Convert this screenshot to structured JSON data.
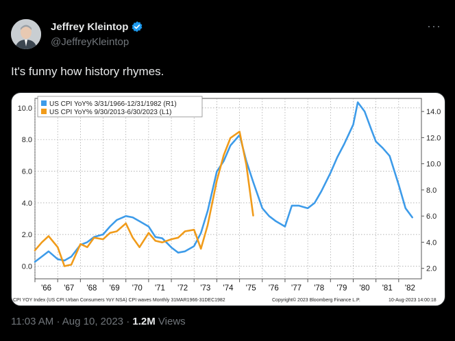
{
  "tweet": {
    "author_name": "Jeffrey Kleintop",
    "author_handle": "@JeffreyKleintop",
    "text": "It's funny how history rhymes.",
    "time": "11:03 AM",
    "date": "Aug 10, 2023",
    "views_count": "1.2M",
    "views_label": "Views",
    "more_icon": "more-icon",
    "verified_icon": "verified-badge-icon",
    "verified_color": "#1d9bf0"
  },
  "chart_data": {
    "type": "line",
    "title": "",
    "legend": {
      "placement": "top-left",
      "entries": [
        "US CPI YoY% 3/31/1966-12/31/1982  (R1)",
        "US CPI YoY% 9/30/2013-6/30/2023  (L1)"
      ]
    },
    "x_tick_labels": [
      "'66",
      "'67",
      "'68",
      "'69",
      "'70",
      "'71",
      "'72",
      "'73",
      "'74",
      "'75",
      "'76",
      "'77",
      "'78",
      "'79",
      "'80",
      "'81",
      "'82"
    ],
    "left_axis": {
      "ylim": [
        -0.8,
        10.6
      ],
      "ticks": [
        "0.0",
        "2.0",
        "4.0",
        "6.0",
        "8.0",
        "10.0"
      ]
    },
    "right_axis": {
      "ylim": [
        1.2,
        15.0
      ],
      "ticks": [
        "2.0",
        "4.0",
        "6.0",
        "8.0",
        "10.0",
        "12.0",
        "14.0"
      ]
    },
    "grid": true,
    "footer_left": "CPI YOY Index (US CPI Urban Consumers YoY NSA) CPI waves  Monthly 31MAR1966-31DEC1982",
    "footer_center": "Copyright© 2023 Bloomberg Finance L.P.",
    "footer_right": "10-Aug-2023 14:00:18",
    "series": [
      {
        "name": "US CPI YoY% 3/31/1966-12/31/1982  (R1)",
        "axis": "right",
        "color": "#3d9be9",
        "x": [
          1966.0,
          1966.3,
          1966.6,
          1967.0,
          1967.3,
          1967.6,
          1968.0,
          1968.3,
          1968.6,
          1969.0,
          1969.3,
          1969.6,
          1970.0,
          1970.3,
          1970.6,
          1971.0,
          1971.3,
          1971.6,
          1972.0,
          1972.3,
          1972.6,
          1973.0,
          1973.3,
          1973.6,
          1974.0,
          1974.3,
          1974.6,
          1975.0,
          1975.3,
          1975.6,
          1976.0,
          1976.3,
          1976.6,
          1977.0,
          1977.3,
          1977.6,
          1978.0,
          1978.3,
          1978.6,
          1979.0,
          1979.3,
          1979.6,
          1980.0,
          1980.2,
          1980.5,
          1980.8,
          1981.0,
          1981.3,
          1981.6,
          1982.0,
          1982.3,
          1982.6
        ],
        "y": [
          2.5,
          2.9,
          3.3,
          2.7,
          2.6,
          2.9,
          3.8,
          4.0,
          4.4,
          4.6,
          5.2,
          5.7,
          6.0,
          5.9,
          5.6,
          5.2,
          4.4,
          4.3,
          3.6,
          3.2,
          3.3,
          3.7,
          4.7,
          6.4,
          9.4,
          10.2,
          11.4,
          12.2,
          10.2,
          8.6,
          6.6,
          6.0,
          5.6,
          5.2,
          6.8,
          6.8,
          6.6,
          7.0,
          7.9,
          9.3,
          10.5,
          11.5,
          13.0,
          14.7,
          14.0,
          12.6,
          11.7,
          11.2,
          10.6,
          8.4,
          6.6,
          5.9
        ]
      },
      {
        "name": "US CPI YoY% 9/30/2013-6/30/2023  (L1)",
        "axis": "left",
        "color": "#f09b1a",
        "x": [
          1966.0,
          1966.3,
          1966.6,
          1967.0,
          1967.3,
          1967.6,
          1968.0,
          1968.3,
          1968.6,
          1969.0,
          1969.3,
          1969.6,
          1970.0,
          1970.3,
          1970.6,
          1971.0,
          1971.3,
          1971.6,
          1972.0,
          1972.3,
          1972.6,
          1973.0,
          1973.3,
          1973.6,
          1974.0,
          1974.3,
          1974.6,
          1975.0,
          1975.3,
          1975.6
        ],
        "y": [
          1.0,
          1.5,
          1.9,
          1.2,
          0.0,
          0.1,
          1.4,
          1.2,
          1.8,
          1.7,
          2.1,
          2.2,
          2.7,
          1.8,
          1.2,
          2.1,
          1.6,
          1.5,
          1.7,
          1.8,
          2.2,
          2.3,
          1.1,
          2.6,
          5.4,
          7.0,
          8.1,
          8.5,
          6.4,
          3.2
        ]
      }
    ]
  }
}
